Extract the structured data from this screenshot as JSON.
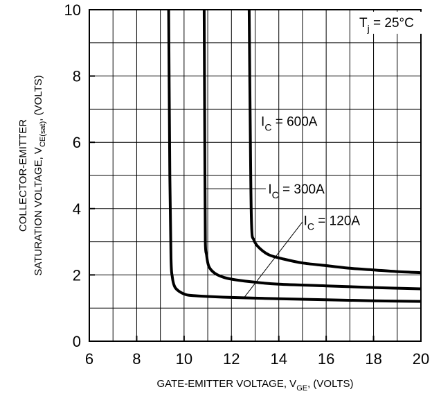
{
  "chart_data": {
    "type": "line",
    "xlabel": "GATE-EMITTER VOLTAGE, V",
    "xlabel_sub": "GE",
    "xlabel_suffix": ", (VOLTS)",
    "ylabel_line1": "COLLECTOR-EMITTER",
    "ylabel_line2": "SATURATION VOLTAGE, V",
    "ylabel_sub": "CE(sat)",
    "ylabel_suffix": ", (VOLTS)",
    "xlim": [
      6,
      20
    ],
    "ylim": [
      0,
      10
    ],
    "x_ticks": [
      6,
      8,
      10,
      12,
      14,
      16,
      18,
      20
    ],
    "x_tick_labels": [
      "6",
      "8",
      "10",
      "12",
      "14",
      "16",
      "18",
      "20"
    ],
    "y_ticks": [
      0,
      2,
      4,
      6,
      8,
      10
    ],
    "y_tick_labels": [
      "0",
      "2",
      "4",
      "6",
      "8",
      "10"
    ],
    "grid": true,
    "condition": {
      "main": "T",
      "sub": "j",
      "rest": " = 25°C"
    },
    "series": [
      {
        "name": "I_C = 120A",
        "label_main": "I",
        "label_sub": "C",
        "label_rest": " = 120A",
        "x": [
          9.35,
          9.4,
          9.45,
          9.5,
          9.6,
          9.8,
          10.1,
          10.5,
          11,
          12,
          13,
          14,
          16,
          18,
          20
        ],
        "y": [
          10.0,
          5.0,
          2.5,
          1.95,
          1.65,
          1.5,
          1.4,
          1.37,
          1.35,
          1.32,
          1.3,
          1.28,
          1.25,
          1.22,
          1.2
        ]
      },
      {
        "name": "I_C = 300A",
        "label_main": "I",
        "label_sub": "C",
        "label_rest": " = 300A",
        "x": [
          10.85,
          10.88,
          10.9,
          10.95,
          11.05,
          11.3,
          11.7,
          12.2,
          13,
          14,
          16,
          18,
          20
        ],
        "y": [
          10.0,
          5.0,
          3.0,
          2.6,
          2.25,
          2.05,
          1.92,
          1.85,
          1.78,
          1.72,
          1.67,
          1.62,
          1.58
        ]
      },
      {
        "name": "I_C = 600A",
        "label_main": "I",
        "label_sub": "C",
        "label_rest": " = 600A",
        "x": [
          12.75,
          12.8,
          12.85,
          12.95,
          13.2,
          13.6,
          14.2,
          15,
          16,
          17,
          18,
          19,
          20
        ],
        "y": [
          10.0,
          6.0,
          3.5,
          3.05,
          2.8,
          2.6,
          2.48,
          2.36,
          2.28,
          2.2,
          2.15,
          2.1,
          2.07
        ]
      }
    ]
  }
}
